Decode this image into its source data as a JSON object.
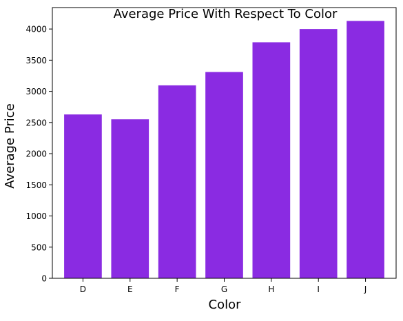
{
  "chart_data": {
    "type": "bar",
    "title": "Average Price With Respect To Color",
    "xlabel": "Color",
    "ylabel": "Average Price",
    "categories": [
      "D",
      "E",
      "F",
      "G",
      "H",
      "I",
      "J"
    ],
    "values": [
      2629,
      2551,
      3096,
      3310,
      3787,
      4000,
      4130
    ],
    "ylim": [
      0,
      4344
    ],
    "yticks": [
      "0",
      "500",
      "1000",
      "1500",
      "2000",
      "2500",
      "3000",
      "3500",
      "4000"
    ],
    "grid": false,
    "legend": "none",
    "bar_color": "#8a2be2"
  }
}
